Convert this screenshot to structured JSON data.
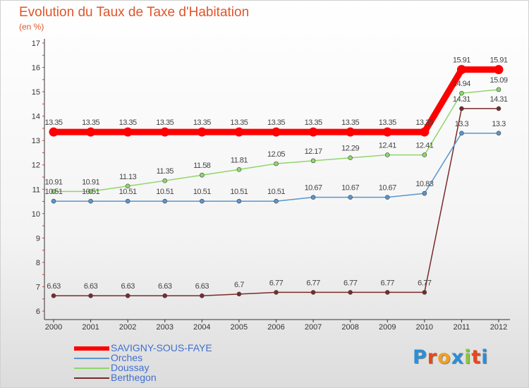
{
  "chart_data": {
    "type": "line",
    "title": "Evolution du Taux de Taxe d'Habitation",
    "ylabel": "(en %)",
    "x": [
      "2000",
      "2001",
      "2002",
      "2003",
      "2004",
      "2005",
      "2006",
      "2007",
      "2008",
      "2009",
      "2010",
      "2011",
      "2012"
    ],
    "ylim": [
      6,
      17
    ],
    "yticks": [
      6,
      7,
      8,
      9,
      10,
      11,
      12,
      13,
      14,
      15,
      16,
      17
    ],
    "grid": false,
    "legend": "bottom-left",
    "series": [
      {
        "name": "SAVIGNY-SOUS-FAYE",
        "color": "#ff0000",
        "values": [
          13.35,
          13.35,
          13.35,
          13.35,
          13.35,
          13.35,
          13.35,
          13.35,
          13.35,
          13.35,
          13.35,
          15.91,
          15.91
        ],
        "labels": [
          "13.35",
          "13.35",
          "13.35",
          "13.35",
          "13.35",
          "13.35",
          "13.35",
          "13.35",
          "13.35",
          "13.35",
          "13.35",
          "15.91",
          "15.91"
        ]
      },
      {
        "name": "Orches",
        "color": "#5b95cc",
        "values": [
          10.51,
          10.51,
          10.51,
          10.51,
          10.51,
          10.51,
          10.51,
          10.67,
          10.67,
          10.67,
          10.83,
          13.3,
          13.3
        ],
        "labels": [
          "10.51",
          "10.51",
          "10.51",
          "10.51",
          "10.51",
          "10.51",
          "10.51",
          "10.67",
          "10.67",
          "10.67",
          "10.83",
          "13.3",
          "13.3"
        ]
      },
      {
        "name": "Doussay",
        "color": "#8fd66b",
        "values": [
          10.91,
          10.91,
          11.13,
          11.35,
          11.58,
          11.81,
          12.05,
          12.17,
          12.29,
          12.41,
          12.41,
          14.94,
          15.09
        ],
        "labels": [
          "10.91",
          "10.91",
          "11.13",
          "11.35",
          "11.58",
          "11.81",
          "12.05",
          "12.17",
          "12.29",
          "12.41",
          "12.41",
          "14.94",
          "15.09"
        ]
      },
      {
        "name": "Berthegon",
        "color": "#7a2a2a",
        "values": [
          6.63,
          6.63,
          6.63,
          6.63,
          6.63,
          6.7,
          6.77,
          6.77,
          6.77,
          6.77,
          6.77,
          14.31,
          14.31
        ],
        "labels": [
          "6.63",
          "6.63",
          "6.63",
          "6.63",
          "6.63",
          "6.7",
          "6.77",
          "6.77",
          "6.77",
          "6.77",
          "6.77",
          "14.31",
          "14.31"
        ]
      }
    ]
  },
  "brand": {
    "letters": [
      "P",
      "r",
      "o",
      "x",
      "i",
      "t",
      "i"
    ],
    "colors": [
      "#2a8fd6",
      "#e8481c",
      "#f0a020",
      "#2a8fd6",
      "#8cc63f",
      "#e8481c",
      "#2a8fd6"
    ]
  }
}
